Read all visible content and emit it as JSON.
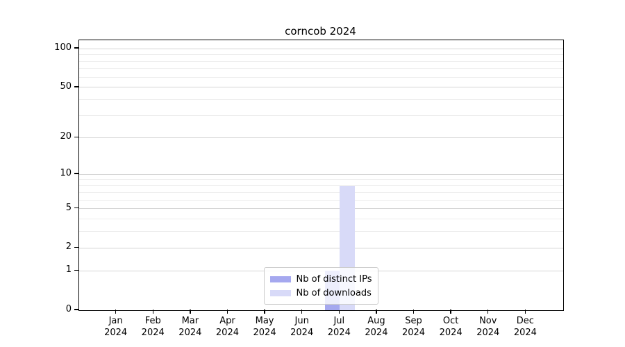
{
  "title": "corncob 2024",
  "chart_data": {
    "type": "bar",
    "title": "corncob 2024",
    "categories": [
      "Jan 2024",
      "Feb 2024",
      "Mar 2024",
      "Apr 2024",
      "May 2024",
      "Jun 2024",
      "Jul 2024",
      "Aug 2024",
      "Sep 2024",
      "Oct 2024",
      "Nov 2024",
      "Dec 2024"
    ],
    "x_tick_months": [
      "Jan",
      "Feb",
      "Mar",
      "Apr",
      "May",
      "Jun",
      "Jul",
      "Aug",
      "Sep",
      "Oct",
      "Nov",
      "Dec"
    ],
    "x_tick_year": "2024",
    "series": [
      {
        "name": "Nb of distinct IPs",
        "color": "#a5a8ef",
        "values": [
          0,
          0,
          0,
          0,
          0,
          0,
          1,
          0,
          0,
          0,
          0,
          0
        ]
      },
      {
        "name": "Nb of downloads",
        "color": "#d8daf8",
        "values": [
          0,
          0,
          0,
          0,
          0,
          0,
          8,
          0,
          0,
          0,
          0,
          0
        ]
      }
    ],
    "y_axis": {
      "scale": "log1p",
      "major_ticks": [
        0,
        1,
        2,
        5,
        10,
        20,
        50,
        100
      ],
      "minor_ticks": [
        3,
        4,
        6,
        7,
        8,
        9,
        30,
        40,
        60,
        70,
        80,
        90
      ],
      "max": 116
    },
    "x_axis": {
      "units_before": 1,
      "units_after": 1,
      "bar_width_units": 0.4
    },
    "xlabel": "",
    "ylabel": "",
    "grid": true,
    "legend_position": "lower center",
    "gridline_major_color": "#d4d4d4",
    "gridline_minor_color": "#ededed"
  }
}
